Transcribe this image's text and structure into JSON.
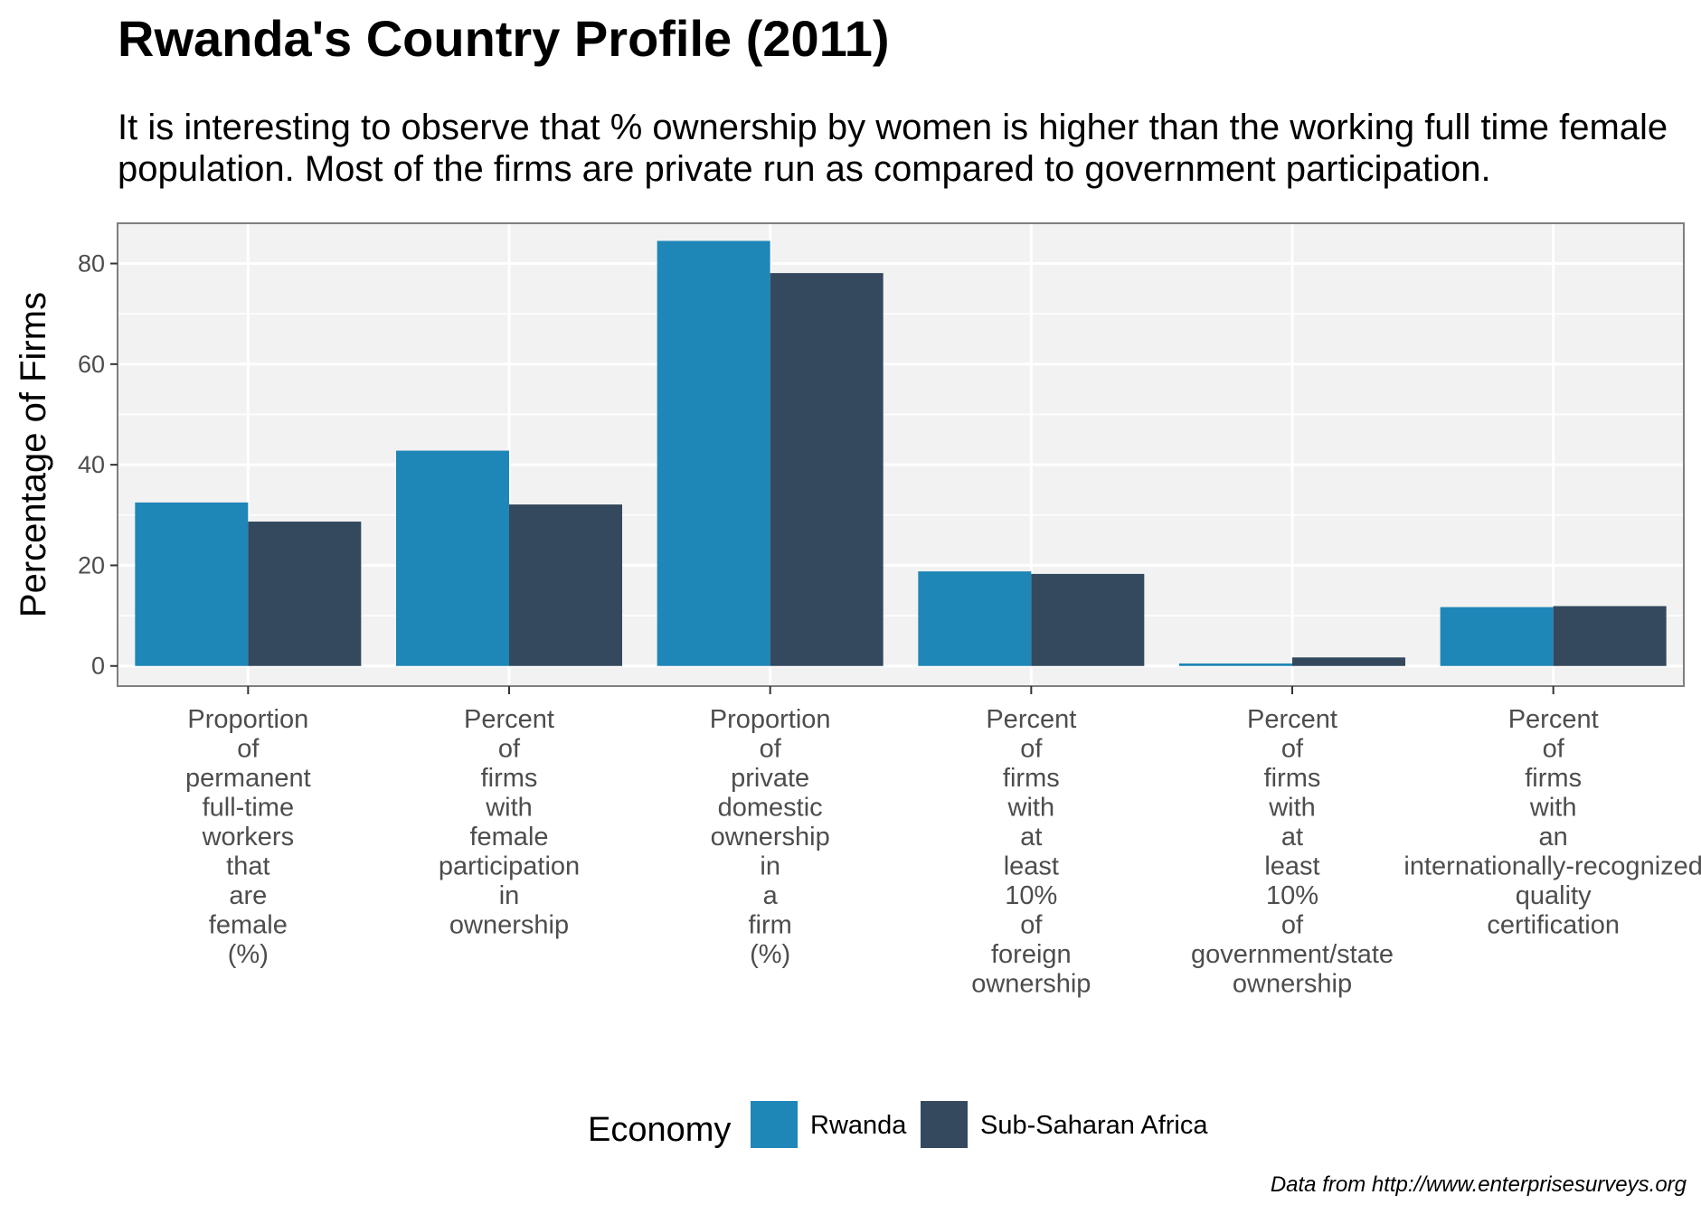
{
  "chart_data": {
    "type": "bar",
    "title": "Rwanda's Country Profile (2011)",
    "subtitle": "It is interesting to observe that % ownership by women is higher than the working full time female population. Most of the firms are private run as compared to government participation.",
    "ylabel": "Percentage of Firms",
    "xlabel": "",
    "ylim": [
      -4,
      88
    ],
    "yticks": [
      0,
      20,
      40,
      60,
      80
    ],
    "grid": true,
    "legend_position": "bottom",
    "legend_title": "Economy",
    "categories": [
      "Proportion of permanent full-time workers that are female (%)",
      "Percent of firms with female participation in ownership",
      "Proportion of private domestic ownership in a firm (%)",
      "Percent of firms with at least 10% of foreign ownership",
      "Percent of firms with at least 10% of government/state ownership",
      "Percent of firms with an internationally-recognized quality certification"
    ],
    "series": [
      {
        "name": "Rwanda",
        "color": "#1f86b8",
        "values": [
          32.5,
          42.8,
          84.5,
          18.8,
          0.5,
          11.7
        ]
      },
      {
        "name": "Sub-Saharan Africa",
        "color": "#34495e",
        "values": [
          28.7,
          32.1,
          78.1,
          18.3,
          1.7,
          11.9
        ]
      }
    ],
    "caption": "Data from http://www.enterprisesurveys.org"
  }
}
